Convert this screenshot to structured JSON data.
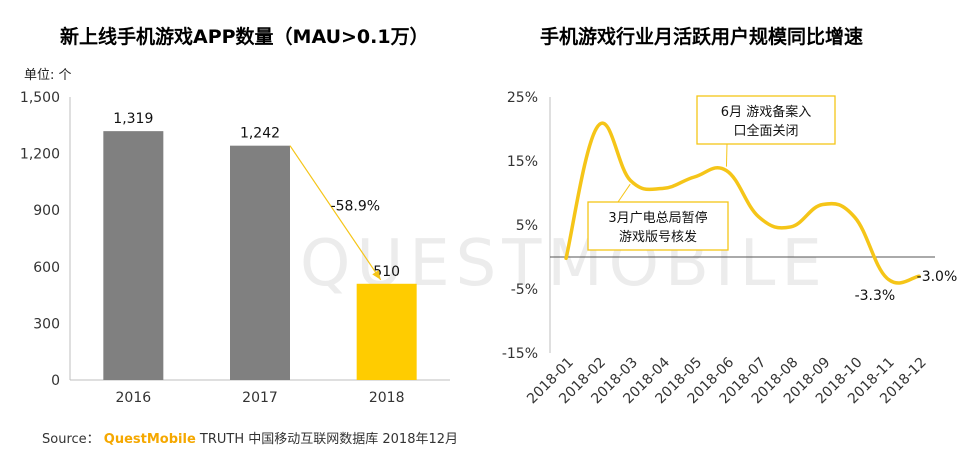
{
  "source": {
    "label": "Source：",
    "brand": "QuestMobile",
    "rest": "TRUTH 中国移动互联网数据库 2018年12月"
  },
  "watermark": "QUESTMOBILE",
  "colors": {
    "gray_bar": "#808080",
    "highlight_bar": "#ffcc00",
    "line": "#f5c518",
    "arrow": "#f5c518"
  },
  "chart_data": [
    {
      "type": "bar",
      "title": "新上线手机游戏APP数量（MAU>0.1万）",
      "unit_label": "单位: 个",
      "categories": [
        "2016",
        "2017",
        "2018"
      ],
      "values": [
        1319,
        1242,
        510
      ],
      "value_labels": [
        "1,319",
        "1,242",
        "510"
      ],
      "highlight_index": 2,
      "ylim": [
        0,
        1500
      ],
      "yticks": [
        0,
        300,
        600,
        900,
        1200,
        1500
      ],
      "ytick_labels": [
        "0",
        "300",
        "600",
        "900",
        "1,200",
        "1,500"
      ],
      "annotation": "-58.9%"
    },
    {
      "type": "line",
      "title": "手机游戏行业月活跃用户规模同比增速",
      "categories": [
        "2018-01",
        "2018-02",
        "2018-03",
        "2018-04",
        "2018-05",
        "2018-06",
        "2018-07",
        "2018-08",
        "2018-09",
        "2018-10",
        "2018-11",
        "2018-12"
      ],
      "values": [
        -0.2,
        20.5,
        12.0,
        10.7,
        12.5,
        13.5,
        6.3,
        4.7,
        8.2,
        6.2,
        -3.3,
        -3.0
      ],
      "ylim": [
        -15,
        25
      ],
      "yticks": [
        -15,
        -5,
        5,
        15,
        25
      ],
      "ytick_labels": [
        "-15%",
        "-5%",
        "5%",
        "15%",
        "25%"
      ],
      "point_labels": [
        {
          "index": 10,
          "text": "-3.3%"
        },
        {
          "index": 11,
          "text": "-3.0%"
        }
      ],
      "callouts": [
        {
          "index": 2,
          "lines": [
            "3月广电总局暂停",
            "游戏版号核发"
          ]
        },
        {
          "index": 5,
          "lines": [
            "6月 游戏备案入",
            "口全面关闭"
          ]
        }
      ]
    }
  ]
}
